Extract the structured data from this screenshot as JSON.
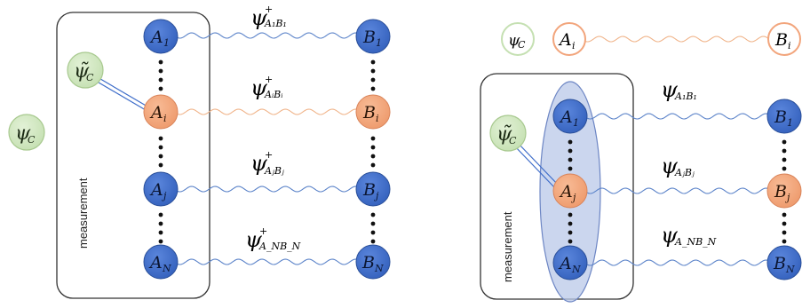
{
  "colors": {
    "qubit_blue": "#3d6cc9",
    "qubit_blue_stroke": "#2a4f99",
    "qubit_orange": "#f2a57c",
    "qubit_orange_stroke": "#d9845a",
    "qubit_green": "#cfe6bf",
    "qubit_green_stroke": "#a8c98f",
    "wave_blue": "#5b83c9",
    "wave_orange": "#f0b48a",
    "ellipse_fill": "#b9c8e8",
    "ellipse_stroke": "#6d86c4"
  },
  "measurement_label": "measurement",
  "left": {
    "psi_c_outer": {
      "sym": "ψ",
      "sub": "C"
    },
    "psi_c_tilde": {
      "sym": "ψ̃",
      "sub": "C"
    },
    "a_nodes": [
      {
        "letter": "A",
        "sub": "1",
        "color": "blue"
      },
      {
        "letter": "A",
        "sub": "i",
        "color": "orange"
      },
      {
        "letter": "A",
        "sub": "j",
        "color": "blue"
      },
      {
        "letter": "A",
        "sub": "N",
        "color": "blue"
      }
    ],
    "b_nodes": [
      {
        "letter": "B",
        "sub": "1",
        "color": "blue"
      },
      {
        "letter": "B",
        "sub": "i",
        "color": "orange"
      },
      {
        "letter": "B",
        "sub": "j",
        "color": "blue"
      },
      {
        "letter": "B",
        "sub": "N",
        "color": "blue"
      }
    ],
    "links": [
      {
        "sym": "ψ",
        "sup": "+",
        "sub": "A₁B₁"
      },
      {
        "sym": "ψ",
        "sup": "+",
        "sub": "AᵢBᵢ"
      },
      {
        "sym": "ψ",
        "sup": "+",
        "sub": "AⱼBⱼ"
      },
      {
        "sym": "ψ",
        "sup": "+",
        "sub": "A_NB_N"
      }
    ]
  },
  "right": {
    "top_psi_c": {
      "sym": "ψ",
      "sub": "C"
    },
    "top_a": {
      "letter": "A",
      "sub": "i"
    },
    "top_b": {
      "letter": "B",
      "sub": "i"
    },
    "psi_c_tilde": {
      "sym": "ψ̃",
      "sub": "C"
    },
    "a_nodes": [
      {
        "letter": "A",
        "sub": "1",
        "color": "blue"
      },
      {
        "letter": "A",
        "sub": "j",
        "color": "orange"
      },
      {
        "letter": "A",
        "sub": "N",
        "color": "blue"
      }
    ],
    "b_nodes": [
      {
        "letter": "B",
        "sub": "1",
        "color": "blue"
      },
      {
        "letter": "B",
        "sub": "j",
        "color": "orange"
      },
      {
        "letter": "B",
        "sub": "N",
        "color": "blue"
      }
    ],
    "links": [
      {
        "sym": "ψ",
        "sub": "A₁B₁"
      },
      {
        "sym": "ψ",
        "sub": "AⱼBⱼ"
      },
      {
        "sym": "ψ",
        "sub": "A_NB_N"
      }
    ]
  }
}
